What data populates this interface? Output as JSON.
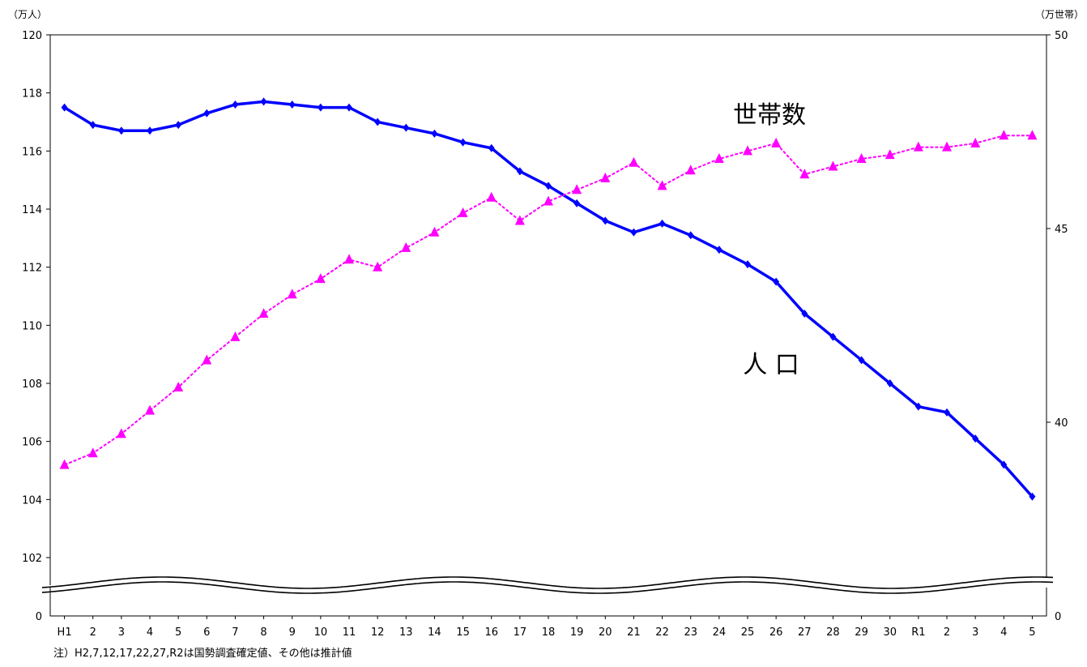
{
  "chart_data": {
    "type": "line",
    "title": "",
    "left_unit": "（万人）",
    "right_unit": "（万世帯）",
    "x_categories": [
      "H1",
      "2",
      "3",
      "4",
      "5",
      "6",
      "7",
      "8",
      "9",
      "10",
      "11",
      "12",
      "13",
      "14",
      "15",
      "16",
      "17",
      "18",
      "19",
      "20",
      "21",
      "22",
      "23",
      "24",
      "25",
      "26",
      "27",
      "28",
      "29",
      "30",
      "R1",
      "2",
      "3",
      "4",
      "5"
    ],
    "left_axis": {
      "ylim": [
        100,
        120
      ],
      "ticks": [
        102,
        104,
        106,
        108,
        110,
        112,
        114,
        116,
        118,
        120
      ],
      "break_label": "0"
    },
    "right_axis": {
      "ylim": [
        30,
        50
      ],
      "ticks": [
        40,
        45,
        50
      ],
      "break_label": "0"
    },
    "series": [
      {
        "name": "人 口",
        "axis": "left",
        "color": "#0000ff",
        "marker": "diamond",
        "values": [
          117.5,
          116.9,
          116.7,
          116.7,
          116.9,
          117.3,
          117.6,
          117.7,
          117.6,
          117.5,
          117.5,
          117.0,
          116.8,
          116.6,
          116.3,
          116.1,
          115.3,
          114.8,
          114.2,
          113.6,
          113.2,
          113.5,
          113.1,
          112.6,
          112.1,
          111.5,
          110.4,
          109.6,
          108.8,
          108.0,
          107.2,
          107.0,
          106.1,
          105.2,
          104.1
        ]
      },
      {
        "name": "世帯数",
        "axis": "right",
        "color": "#ff00ff",
        "marker": "triangle",
        "values": [
          38.9,
          39.2,
          39.7,
          40.3,
          40.9,
          41.6,
          42.2,
          42.8,
          43.3,
          43.7,
          44.2,
          44.0,
          44.5,
          44.9,
          45.4,
          45.8,
          45.2,
          45.7,
          46.0,
          46.3,
          46.7,
          46.1,
          46.5,
          46.8,
          47.0,
          47.2,
          46.4,
          46.6,
          46.8,
          46.9,
          47.1,
          47.1,
          47.2,
          47.4,
          47.4
        ]
      }
    ],
    "annotation": "注）H2,7,12,17,22,27,R2は国勢調査確定値、その他は推計値"
  }
}
